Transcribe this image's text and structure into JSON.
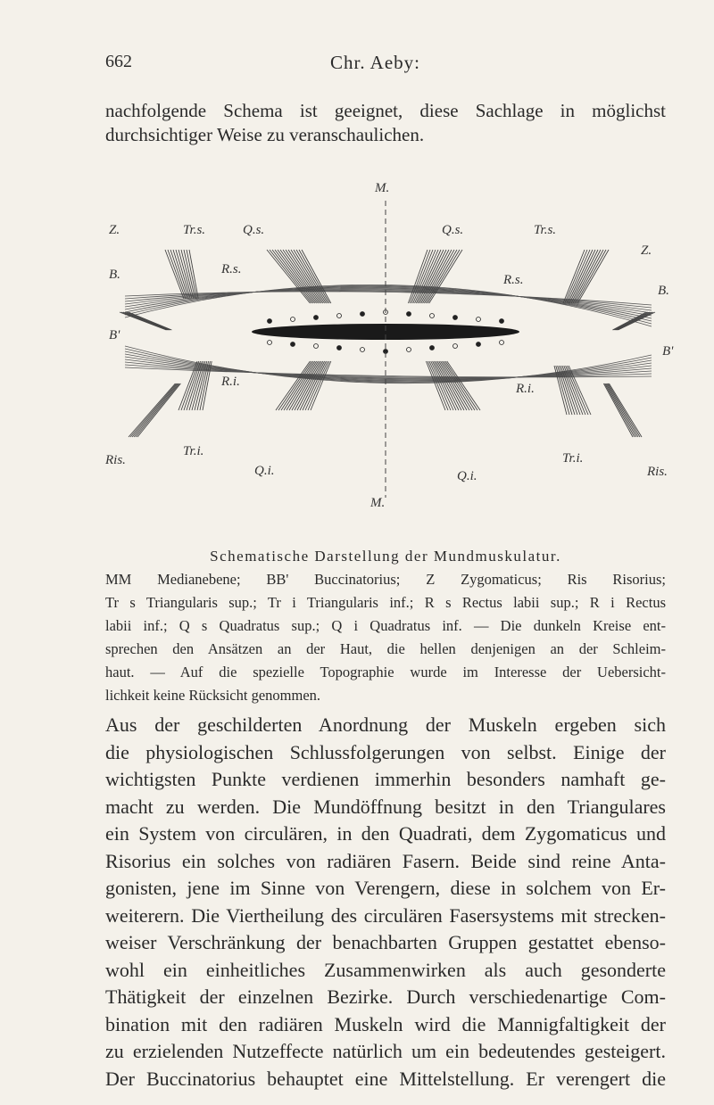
{
  "header": {
    "page_number": "662",
    "running_title": "Chr. Aeby:"
  },
  "intro": [
    "nachfolgende Schema ist geeignet, diese Sachlage in möglichst",
    "durchsichtiger Weise zu veranschaulichen."
  ],
  "figure": {
    "labels": [
      "M.",
      "Z.",
      "Tr.s.",
      "Q.s.",
      "Q.s.",
      "Tr.s.",
      "Z.",
      "B.",
      "B.",
      "B'",
      "B'",
      "R.s.",
      "R.s.",
      "R.i.",
      "R.i.",
      "Ris.",
      "Ris.",
      "Tr.i.",
      "Tr.i.",
      "Q.i.",
      "Q.i.",
      "M."
    ]
  },
  "caption": {
    "title": "Schematische Darstellung der Mundmuskulatur.",
    "lines": [
      "MM Medianebene; BB' Buccinatorius; Z Zygomaticus; Ris Risorius;",
      "Tr s Triangularis sup.; Tr i Triangularis inf.; R s Rectus labii sup.; R i Rectus",
      "labii inf.; Q s Quadratus sup.; Q i Quadratus inf. — Die dunkeln Kreise ent-",
      "sprechen den Ansätzen an der Haut, die hellen denjenigen an der Schleim-",
      "haut. — Auf die spezielle Topographie wurde im Interesse der Uebersicht-",
      "lichkeit keine Rücksicht genommen."
    ]
  },
  "body": [
    "Aus der geschilderten Anordnung der Muskeln ergeben sich",
    "die physiologischen Schlussfolgerungen von selbst. Einige der",
    "wichtigsten Punkte verdienen immerhin besonders namhaft ge-",
    "macht zu werden. Die Mundöffnung besitzt in den Triangulares",
    "ein System von circulären, in den Quadrati, dem Zygomaticus und",
    "Risorius ein solches von radiären Fasern. Beide sind reine Anta-",
    "gonisten, jene im Sinne von Verengern, diese in solchem von Er-",
    "weiterern. Die Viertheilung des circulären Fasersystems mit strecken-",
    "weiser Verschränkung der benachbarten Gruppen gestattet ebenso-",
    "wohl ein einheitliches Zusammenwirken als auch gesonderte",
    "Thätigkeit der einzelnen Bezirke. Durch verschiedenartige Com-",
    "bination mit den radiären Muskeln wird die Mannigfaltigkeit der",
    "zu erzielenden Nutzeffecte natürlich um ein bedeutendes gesteigert.",
    "Der Buccinatorius behauptet eine Mittelstellung. Er verengert die"
  ]
}
